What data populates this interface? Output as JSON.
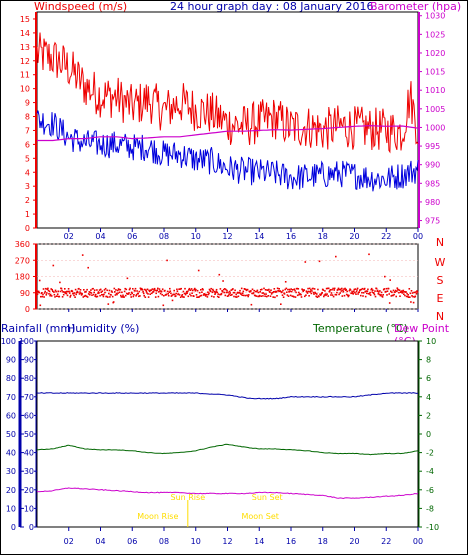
{
  "header": {
    "left_title": "Windspeed (m/s)",
    "center_title": "24 hour graph day : 08 January 2016",
    "right_title": "Barometer (hpa)"
  },
  "bottom_header": {
    "rainfall": "Rainfall (mm)",
    "humidity": "Humidity (%)",
    "temperature": "Temperature (°C)",
    "dewpoint": "Dew Point (°C)"
  },
  "annotations": {
    "sun_rise": "Sun Rise",
    "sun_set": "Sun Set",
    "moon_rise": "Moon Rise",
    "moon_set": "Moon Set"
  },
  "colors": {
    "wind_gust": "#ee0000",
    "wind_avg": "#0000dd",
    "barometer": "#cc00cc",
    "direction": "#ee0000",
    "humidity": "#0000aa",
    "temperature": "#006600",
    "dewpoint": "#cc00cc",
    "rain": "#0000aa",
    "moon_sun": "#ffdd00"
  },
  "chart_data": [
    {
      "type": "line",
      "x_ticks": [
        "02",
        "04",
        "06",
        "08",
        "10",
        "12",
        "14",
        "16",
        "18",
        "20",
        "22",
        "00"
      ],
      "xlim": [
        0,
        24
      ],
      "y_left_ticks": [
        0,
        1,
        2,
        3,
        4,
        5,
        6,
        7,
        8,
        9,
        10,
        11,
        12,
        13,
        14,
        15
      ],
      "ylim_left": [
        0,
        15.5
      ],
      "y_right_ticks": [
        975,
        980,
        985,
        990,
        995,
        1000,
        1005,
        1010,
        1015,
        1020,
        1025,
        1030
      ],
      "ylim_right": [
        973,
        1031
      ],
      "series": [
        {
          "key": "gust",
          "axis": "left",
          "x": [
            0,
            1,
            2,
            3,
            4,
            5,
            6,
            7,
            8,
            9,
            10,
            11,
            12,
            13,
            14,
            15,
            16,
            17,
            18,
            19,
            20,
            21,
            22,
            23,
            23.5,
            24
          ],
          "values": [
            12.5,
            12.2,
            11.5,
            10.2,
            9.5,
            9.4,
            8.7,
            9.2,
            8.4,
            9.0,
            8.5,
            8.2,
            7.5,
            7.3,
            7.6,
            7.9,
            7.2,
            7.3,
            7.0,
            7.3,
            7.2,
            7.1,
            7.0,
            6.9,
            9.5,
            7.0
          ]
        },
        {
          "key": "avg",
          "axis": "left",
          "x": [
            0,
            1,
            2,
            3,
            4,
            5,
            6,
            7,
            8,
            9,
            10,
            11,
            12,
            13,
            14,
            15,
            16,
            17,
            18,
            19,
            20,
            21,
            22,
            23,
            24
          ],
          "values": [
            7.8,
            7.5,
            6.5,
            6.1,
            6.0,
            6.0,
            5.8,
            5.8,
            5.3,
            5.3,
            4.9,
            4.8,
            4.3,
            4.1,
            4.0,
            3.9,
            3.6,
            3.7,
            3.8,
            3.9,
            3.8,
            3.6,
            3.5,
            3.8,
            4.2
          ]
        },
        {
          "key": "baro",
          "axis": "right",
          "x": [
            0,
            1,
            2,
            3,
            4,
            5,
            6,
            7,
            8,
            9,
            10,
            11,
            12,
            13,
            14,
            15,
            16,
            17,
            18,
            19,
            20,
            21,
            22,
            23,
            24
          ],
          "values": [
            996.5,
            996.5,
            997,
            997,
            997.5,
            997.5,
            997,
            997.2,
            997.5,
            997.5,
            998,
            998.5,
            999,
            999,
            999.2,
            999.4,
            999.3,
            999.5,
            999.7,
            1000,
            1000.3,
            1000.5,
            1000.3,
            1000.4,
            999.8
          ]
        }
      ]
    },
    {
      "type": "scatter",
      "x_ticks": [
        "02",
        "04",
        "06",
        "08",
        "10",
        "12",
        "14",
        "16",
        "18",
        "20",
        "22",
        "00"
      ],
      "y_ticks": [
        0,
        90,
        180,
        270,
        360
      ],
      "direction_labels": [
        "N",
        "W",
        "S",
        "E",
        "N"
      ],
      "ylim": [
        0,
        360
      ],
      "typical_direction": 90
    },
    {
      "type": "line",
      "x_ticks": [
        "02",
        "04",
        "06",
        "08",
        "10",
        "12",
        "14",
        "16",
        "18",
        "20",
        "22",
        "00"
      ],
      "xlim": [
        0,
        24
      ],
      "y_left_ticks": [
        0,
        10,
        20,
        30,
        40,
        50,
        60,
        70,
        80,
        90,
        100
      ],
      "ylim_left": [
        0,
        100
      ],
      "y_left_inner_ticks": [
        0,
        10,
        20,
        30,
        40,
        50,
        60,
        70,
        80,
        90,
        100
      ],
      "y_right_ticks": [
        -10,
        -8,
        -6,
        -4,
        -2,
        0,
        2,
        4,
        6,
        8,
        10
      ],
      "ylim_right": [
        -10,
        10
      ],
      "series": [
        {
          "key": "humidity",
          "axis": "left",
          "x": [
            0,
            2,
            4,
            6,
            8,
            10,
            12,
            13.5,
            15,
            16,
            17,
            18,
            19,
            20,
            21,
            22,
            23,
            24
          ],
          "values": [
            72,
            72,
            72,
            72,
            72,
            72,
            71,
            69,
            69,
            70,
            70,
            70,
            70,
            70,
            71,
            72,
            72,
            72
          ]
        },
        {
          "key": "temperature",
          "axis": "right",
          "x": [
            0,
            1,
            2,
            3,
            4,
            5,
            6,
            7,
            8,
            9,
            10,
            11,
            12,
            13,
            14,
            15,
            16,
            17,
            18,
            19,
            20,
            21,
            22,
            23,
            24
          ],
          "values": [
            -1.7,
            -1.6,
            -1.2,
            -1.6,
            -1.7,
            -1.7,
            -1.8,
            -2.0,
            -2.1,
            -2.0,
            -1.8,
            -1.4,
            -1.1,
            -1.4,
            -1.6,
            -1.6,
            -1.7,
            -1.8,
            -2.0,
            -2.1,
            -2.1,
            -2.2,
            -2.1,
            -2.1,
            -1.8
          ]
        },
        {
          "key": "dewpoint",
          "axis": "right",
          "x": [
            0,
            1,
            2,
            3,
            4,
            5,
            6,
            7,
            8,
            9,
            10,
            11,
            12,
            13,
            14,
            15,
            16,
            17,
            18,
            19,
            20,
            21,
            22,
            23,
            24
          ],
          "values": [
            -6.2,
            -6.1,
            -5.8,
            -5.9,
            -6.0,
            -6.1,
            -6.2,
            -6.3,
            -6.3,
            -6.3,
            -6.4,
            -6.4,
            -6.4,
            -6.4,
            -6.3,
            -6.3,
            -6.4,
            -6.5,
            -6.6,
            -6.9,
            -6.9,
            -6.8,
            -6.7,
            -6.6,
            -6.4
          ]
        },
        {
          "key": "rain",
          "axis": "left",
          "x": [
            0,
            24
          ],
          "values": [
            0,
            0
          ]
        }
      ],
      "sun_rise_hour": 9.5,
      "sun_set_hour": 14.5,
      "moon_rise_hour": 9.5,
      "moon_set_hour": 14.5
    }
  ]
}
